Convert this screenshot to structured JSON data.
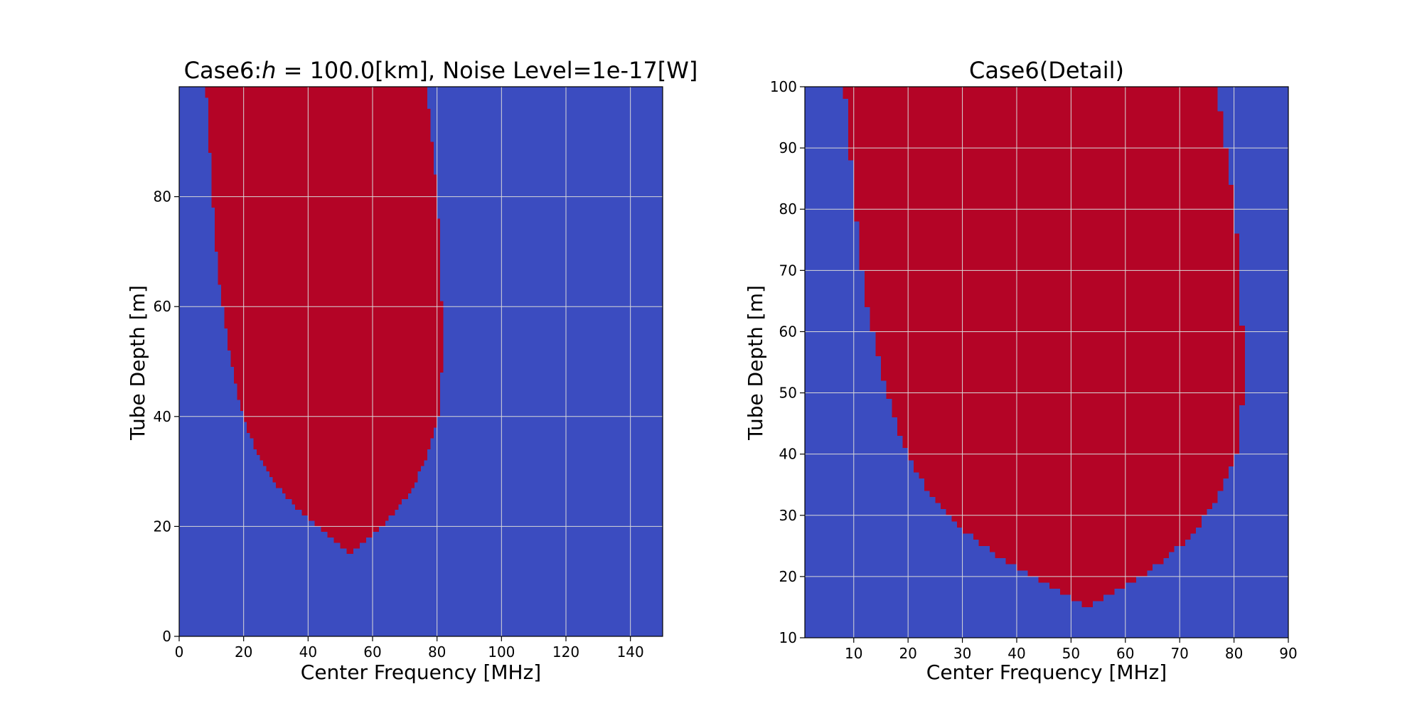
{
  "figure": {
    "background": "#ffffff",
    "colors": {
      "detected": "#b40426",
      "not_detected": "#3b4cc0",
      "grid": "#d8d8d8"
    }
  },
  "chart_data": [
    {
      "type": "heatmap",
      "title": "Case6:h = 100.0[km], Noise Level=1e-17[W]",
      "title_parts": {
        "prefix": "Case6:",
        "var": "h",
        "rest": " = 100.0[km], Noise Level=1e-17[W]"
      },
      "xlabel": "Center Frequency [MHz]",
      "ylabel": "Tube Depth [m]",
      "xlim": [
        0,
        150
      ],
      "ylim": [
        0,
        100
      ],
      "xticks": [
        0,
        20,
        40,
        60,
        80,
        100,
        120,
        140
      ],
      "yticks": [
        0,
        20,
        40,
        60,
        80
      ],
      "grid": true,
      "region": {
        "label": "detected",
        "depth": [
          15,
          16,
          17,
          18,
          19,
          20,
          21,
          22,
          23,
          24,
          25,
          26,
          27,
          28,
          29,
          30,
          31,
          32,
          33,
          34,
          35,
          36,
          37,
          38,
          39,
          40,
          42,
          44,
          46,
          48,
          50,
          55,
          60,
          65,
          70,
          75,
          80,
          85,
          90,
          95,
          100
        ],
        "f_low": [
          52,
          50,
          48,
          46,
          44,
          42,
          40,
          38,
          36,
          34.5,
          33,
          31.5,
          30,
          29,
          28,
          27,
          26,
          25,
          24.2,
          23.4,
          22.6,
          22,
          21.4,
          20.8,
          20.2,
          19.7,
          18.8,
          18,
          17.2,
          16.5,
          15.8,
          14.5,
          13.3,
          12.2,
          11.4,
          10.8,
          10.2,
          9.7,
          9.2,
          8.7,
          8.2
        ],
        "f_high": [
          54,
          56,
          58,
          60,
          62,
          63.5,
          65,
          66.5,
          68,
          69.3,
          70.5,
          71.5,
          72.5,
          73.5,
          74.3,
          75,
          75.8,
          76.5,
          77.2,
          77.8,
          78.4,
          79,
          79.4,
          79.8,
          80.2,
          80.5,
          80.9,
          81.2,
          81.4,
          81.5,
          81.5,
          81.5,
          81.5,
          81.4,
          81.1,
          80.6,
          80,
          79.3,
          78.4,
          77.5,
          76.5
        ]
      }
    },
    {
      "type": "heatmap",
      "title": "Case6(Detail)",
      "xlabel": "Center Frequency [MHz]",
      "ylabel": "Tube Depth [m]",
      "xlim": [
        1,
        90
      ],
      "ylim": [
        10,
        100
      ],
      "xticks": [
        10,
        20,
        30,
        40,
        50,
        60,
        70,
        80,
        90
      ],
      "yticks": [
        10,
        20,
        30,
        40,
        50,
        60,
        70,
        80,
        90,
        100
      ],
      "grid": true,
      "region_ref": "same as panel 1"
    }
  ]
}
